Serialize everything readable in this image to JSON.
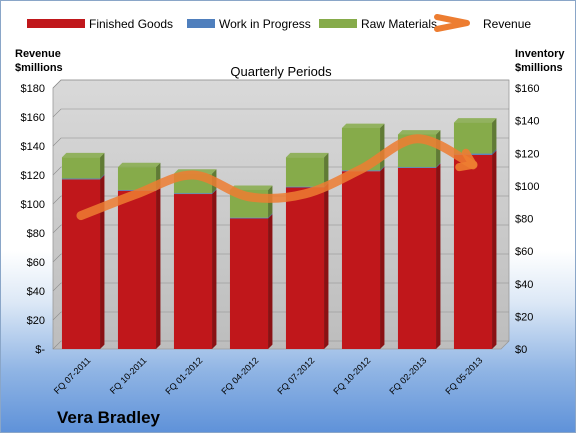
{
  "chart_data": {
    "type": "bar",
    "stacked": true,
    "title": "Quarterly Periods",
    "company": "Vera Bradley",
    "categories": [
      "FQ 07-2011",
      "FQ 10-2011",
      "FQ 01-2012",
      "FQ 04-2012",
      "FQ 07-2012",
      "FQ 10-2012",
      "FQ 02-2013",
      "FQ 05-2013"
    ],
    "left_axis": {
      "label_line1": "Revenue",
      "label_line2": "$millions",
      "ylim": [
        0,
        180
      ],
      "ticks": [
        "$-",
        "$20",
        "$40",
        "$60",
        "$80",
        "$100",
        "$120",
        "$140",
        "$160",
        "$180"
      ]
    },
    "right_axis": {
      "label_line1": "Inventory",
      "label_line2": "$millions",
      "ylim": [
        0,
        160
      ],
      "ticks": [
        "$0",
        "$20",
        "$40",
        "$60",
        "$80",
        "$100",
        "$120",
        "$140",
        "$160"
      ]
    },
    "series": [
      {
        "name": "Finished Goods",
        "axis": "right",
        "color": "#c0171b",
        "values": [
          104,
          97,
          95,
          80,
          99,
          109,
          111,
          119
        ]
      },
      {
        "name": "Work in Progress",
        "axis": "right",
        "color": "#4f7fbd",
        "values": [
          0.5,
          0.5,
          0.5,
          0.5,
          0.5,
          0.5,
          0.5,
          0.8
        ]
      },
      {
        "name": "Raw Materials",
        "axis": "right",
        "color": "#86ab4a",
        "values": [
          13,
          14,
          12,
          17,
          18,
          26,
          20,
          19
        ]
      },
      {
        "name": "Revenue",
        "axis": "left",
        "type": "line",
        "color": "#ed7d31",
        "values": [
          92,
          107,
          120,
          105,
          107,
          124,
          145,
          127
        ]
      }
    ],
    "legend_position": "top",
    "grid": true
  },
  "colors": {
    "plot_bg": "#c8c8c8",
    "depth_side": "#ababab"
  }
}
